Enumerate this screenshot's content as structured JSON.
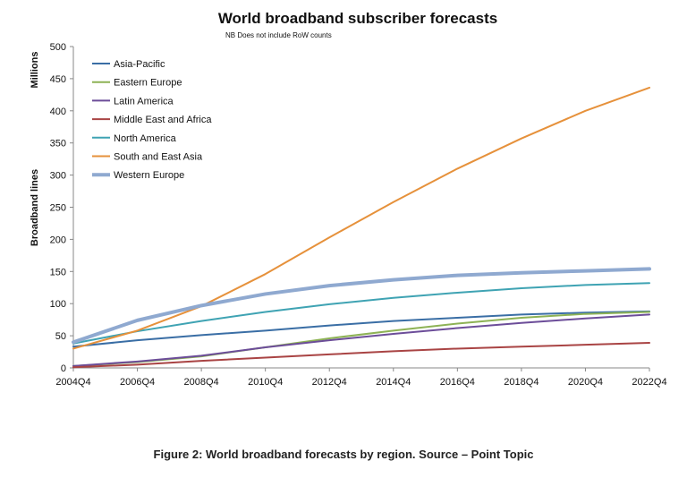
{
  "chart_data": {
    "type": "line",
    "title": "World broadband subscriber forecasts",
    "subtitle": "NB Does not include RoW counts",
    "units": "Millions",
    "ylabel": "Broadband lines",
    "xlabel": "",
    "ylim": [
      0,
      500
    ],
    "yticks": [
      0,
      50,
      100,
      150,
      200,
      250,
      300,
      350,
      400,
      450,
      500
    ],
    "x": [
      "2004Q4",
      "2006Q4",
      "2008Q4",
      "2010Q4",
      "2012Q4",
      "2014Q4",
      "2016Q4",
      "2018Q4",
      "2020Q4",
      "2022Q4"
    ],
    "grid": false,
    "legend_position": "top-left",
    "series": [
      {
        "name": "Asia-Pacific",
        "color": "#3a6ea5",
        "width": 2,
        "values": [
          33,
          43,
          51,
          58,
          66,
          73,
          78,
          83,
          86,
          88
        ]
      },
      {
        "name": "Eastern Europe",
        "color": "#8db255",
        "width": 2,
        "values": [
          3,
          9,
          18,
          32,
          46,
          58,
          69,
          78,
          84,
          87
        ]
      },
      {
        "name": "Latin America",
        "color": "#6c4d99",
        "width": 2,
        "values": [
          3,
          10,
          19,
          32,
          43,
          53,
          62,
          70,
          77,
          83
        ]
      },
      {
        "name": "Middle East and Africa",
        "color": "#a94444",
        "width": 2,
        "values": [
          1,
          5,
          11,
          16,
          21,
          26,
          30,
          33,
          36,
          39
        ]
      },
      {
        "name": "North America",
        "color": "#3fa3b3",
        "width": 2,
        "values": [
          38,
          57,
          73,
          87,
          99,
          109,
          117,
          124,
          129,
          132
        ]
      },
      {
        "name": "South and East Asia",
        "color": "#e6913b",
        "width": 2,
        "values": [
          30,
          58,
          96,
          146,
          203,
          258,
          310,
          357,
          400,
          436
        ]
      },
      {
        "name": "Western Europe",
        "color": "#8fa9d0",
        "width": 4,
        "values": [
          40,
          74,
          97,
          115,
          128,
          137,
          144,
          148,
          151,
          154
        ]
      }
    ]
  },
  "caption": "Figure 2: World broadband forecasts by region. Source – Point Topic"
}
